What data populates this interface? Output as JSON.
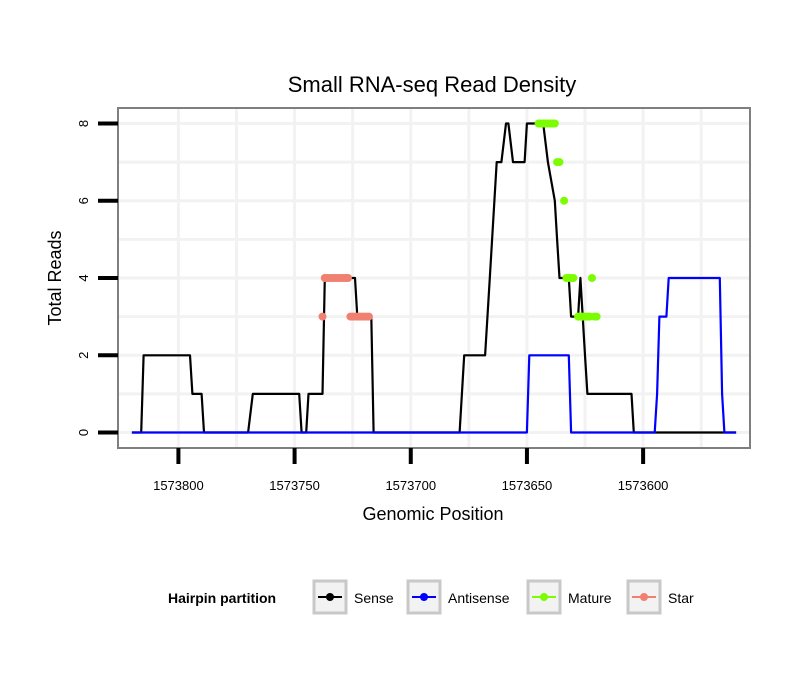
{
  "chart_data": {
    "type": "line",
    "title": "Small RNA-seq Read Density",
    "xlabel": "Genomic Position",
    "ylabel": "Total Reads",
    "x_reversed": true,
    "xlim": [
      1573826,
      1573554
    ],
    "ylim": [
      -0.4,
      8.4
    ],
    "xticks": [
      1573800,
      1573750,
      1573700,
      1573650,
      1573600
    ],
    "xtick_labels": [
      "1573800",
      "1573750",
      "1573700",
      "1573650",
      "1573600"
    ],
    "yticks": [
      0,
      2,
      4,
      6,
      8
    ],
    "ytick_labels": [
      "0",
      "2",
      "4",
      "6",
      "8"
    ],
    "grid": true,
    "legend": {
      "title": "Hairpin partition",
      "position": "bottom",
      "entries": [
        "Sense",
        "Antisense",
        "Mature",
        "Star"
      ]
    },
    "series": [
      {
        "name": "Sense",
        "color": "#000000",
        "mode": "line",
        "x": [
          1573820,
          1573816,
          1573815,
          1573795,
          1573794,
          1573790,
          1573789,
          1573770,
          1573768,
          1573767,
          1573748,
          1573747,
          1573745,
          1573744,
          1573738,
          1573737,
          1573736,
          1573734,
          1573731,
          1573724,
          1573723,
          1573721,
          1573720,
          1573719,
          1573717,
          1573716,
          1573690,
          1573679,
          1573678,
          1573677,
          1573676,
          1573668,
          1573666,
          1573664,
          1573663,
          1573662,
          1573661,
          1573659,
          1573658,
          1573656,
          1573655,
          1573651,
          1573650,
          1573646,
          1573643,
          1573641,
          1573638,
          1573637,
          1573636,
          1573634,
          1573632,
          1573631,
          1573630,
          1573629,
          1573628,
          1573627,
          1573626,
          1573625,
          1573624,
          1573622,
          1573621,
          1573620,
          1573619,
          1573618,
          1573616,
          1573615,
          1573610,
          1573605,
          1573604,
          1573560
        ],
        "y": [
          0,
          0,
          2,
          2,
          1,
          1,
          0,
          0,
          1,
          1,
          1,
          0,
          0,
          1,
          1,
          4,
          4,
          4,
          4,
          4,
          3,
          3,
          3,
          3,
          3,
          0,
          0,
          0,
          1,
          2,
          2,
          2,
          4,
          6,
          7,
          7,
          7,
          8,
          8,
          7,
          7,
          7,
          8,
          8,
          8,
          7,
          6,
          5,
          4,
          4,
          4,
          3,
          3,
          3,
          3,
          4,
          3,
          2,
          1,
          1,
          1,
          1,
          1,
          1,
          1,
          1,
          1,
          1,
          0,
          0
        ]
      },
      {
        "name": "Antisense",
        "color": "#0000ff",
        "mode": "line",
        "x": [
          1573820,
          1573650,
          1573649,
          1573632,
          1573631,
          1573595,
          1573594,
          1573593,
          1573590,
          1573589,
          1573584,
          1573583,
          1573567,
          1573566,
          1573565,
          1573560
        ],
        "y": [
          0,
          0,
          2,
          2,
          0,
          0,
          1,
          3,
          3,
          4,
          4,
          4,
          4,
          1,
          0,
          0
        ]
      },
      {
        "name": "Mature",
        "color": "#7cfc00",
        "mode": "points",
        "x": [
          1573645,
          1573644,
          1573643,
          1573642,
          1573641,
          1573640,
          1573639,
          1573638,
          1573637,
          1573636,
          1573634,
          1573633,
          1573632,
          1573631,
          1573630,
          1573628,
          1573627,
          1573626,
          1573625,
          1573624,
          1573623,
          1573622,
          1573621,
          1573620
        ],
        "y": [
          8,
          8,
          8,
          8,
          8,
          8,
          8,
          8,
          7,
          7,
          6,
          4,
          4,
          4,
          4,
          3,
          3,
          3,
          3,
          3,
          3,
          4,
          3,
          3
        ]
      },
      {
        "name": "Star",
        "color": "#f08070",
        "mode": "points",
        "x": [
          1573738,
          1573737,
          1573736,
          1573735,
          1573734,
          1573733,
          1573732,
          1573731,
          1573730,
          1573729,
          1573728,
          1573727,
          1573726,
          1573725,
          1573724,
          1573723,
          1573722,
          1573721,
          1573720,
          1573719,
          1573718
        ],
        "y": [
          3,
          4,
          4,
          4,
          4,
          4,
          4,
          4,
          4,
          4,
          4,
          4,
          3,
          3,
          3,
          3,
          3,
          3,
          3,
          3,
          3
        ]
      }
    ]
  }
}
